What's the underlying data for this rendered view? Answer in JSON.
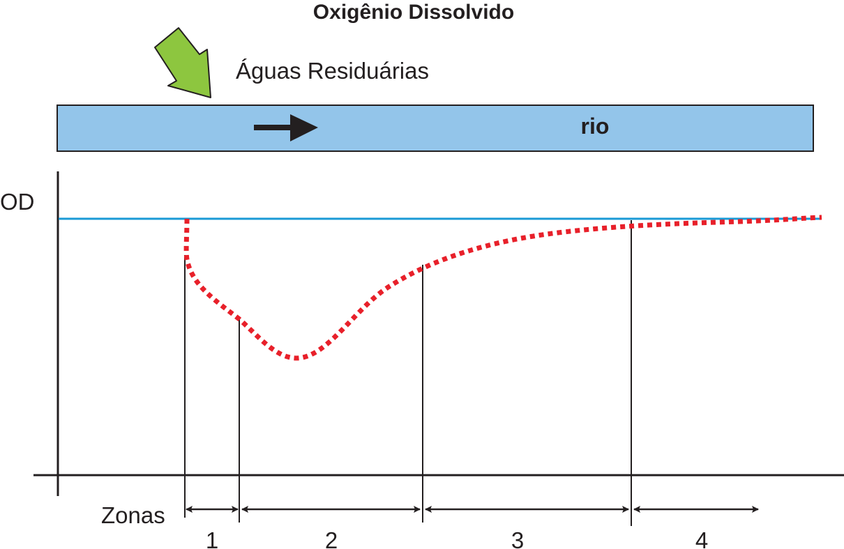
{
  "title": "Oxigênio Dissolvido",
  "inflow_label": "Águas Residuárias",
  "river_label": "rio",
  "y_axis_label": "OD",
  "zones_label": "Zonas",
  "zones": [
    {
      "label": "1"
    },
    {
      "label": "2"
    },
    {
      "label": "3"
    },
    {
      "label": "4"
    }
  ],
  "colors": {
    "river_fill": "#93c5ea",
    "saturation_line": "#1a9ad6",
    "od_curve": "#e8202a",
    "inflow_arrow": "#8dc63f",
    "ink": "#231f20"
  },
  "icons": {
    "inflow": "inflow-arrow-icon",
    "flow_direction": "flow-direction-arrow-icon"
  }
}
